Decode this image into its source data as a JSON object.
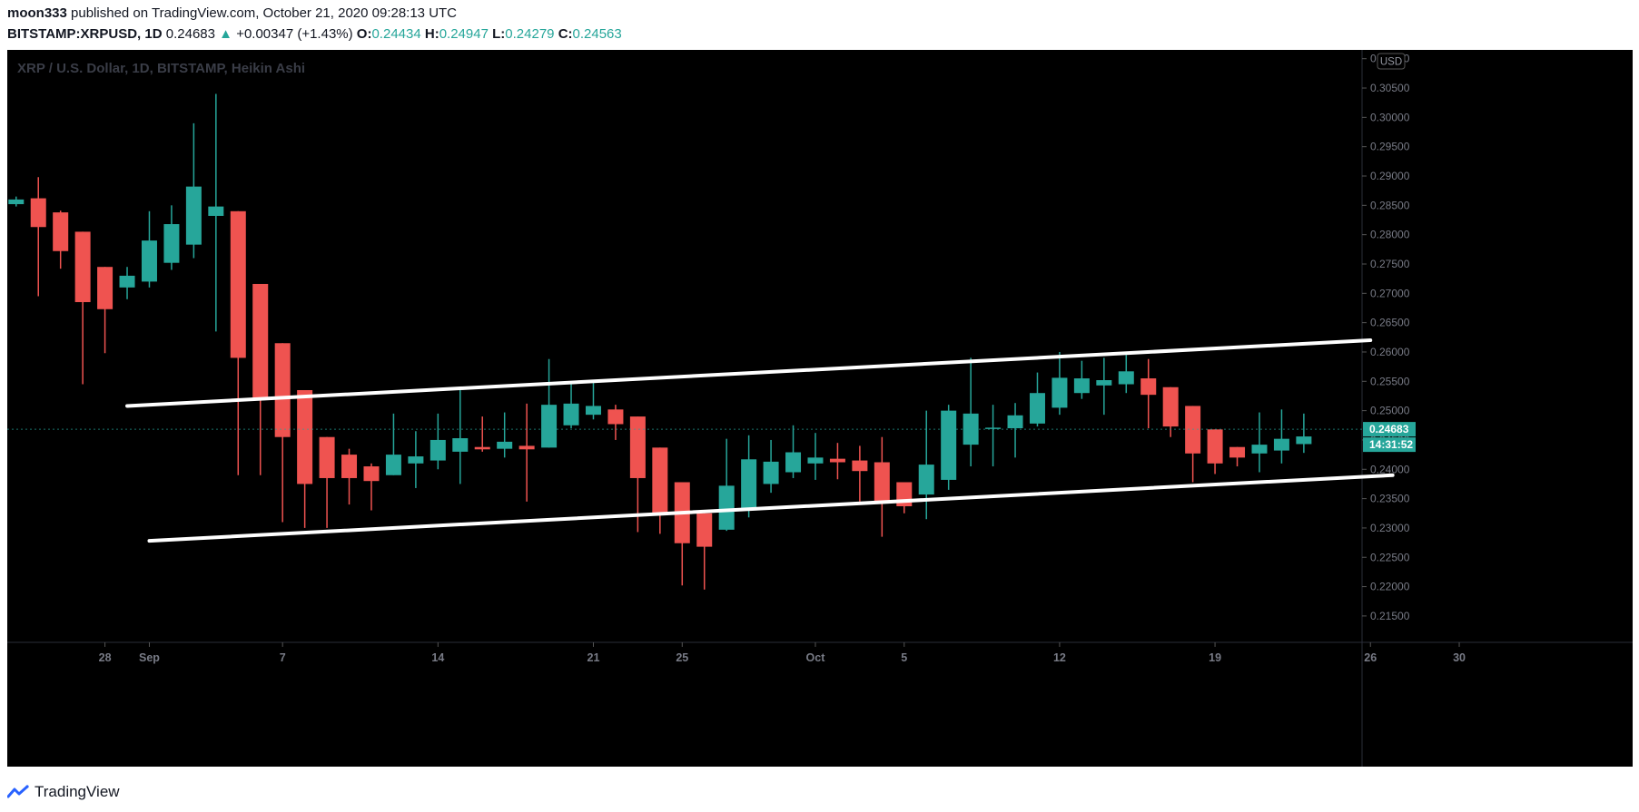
{
  "header": {
    "author": "moon333",
    "published_text": "published on TradingView.com, October 21, 2020 09:28:13 UTC",
    "symbol": "BITSTAMP:XRPUSD, 1D",
    "last": "0.24683",
    "change_arrow": "▲",
    "change": "+0.00347 (+1.43%)",
    "o_label": "O:",
    "o": "0.24434",
    "h_label": "H:",
    "h": "0.24947",
    "l_label": "L:",
    "l": "0.24279",
    "c_label": "C:",
    "c": "0.24563"
  },
  "footer": {
    "brand": "TradingView"
  },
  "colors": {
    "up": "#26a69a",
    "down": "#ef5350",
    "background": "#000000",
    "trendline": "#ffffff",
    "axis_text": "#787b86"
  },
  "chart_data": {
    "type": "candlestick",
    "title": "XRP / U.S. Dollar, 1D, BITSTAMP, Heikin Ashi",
    "currency": "USD",
    "ylim": [
      0.2105,
      0.3115
    ],
    "y_ticks": [
      "0.31000",
      "0.30500",
      "0.30000",
      "0.29500",
      "0.29000",
      "0.28500",
      "0.28000",
      "0.27500",
      "0.27000",
      "0.26500",
      "0.26000",
      "0.25500",
      "0.25000",
      "0.24500",
      "0.24000",
      "0.23500",
      "0.23000",
      "0.22500",
      "0.22000",
      "0.21500"
    ],
    "x_ticks": [
      {
        "label": "28",
        "day": 28
      },
      {
        "label": "Sep",
        "day": 30
      },
      {
        "label": "7",
        "day": 36
      },
      {
        "label": "14",
        "day": 43
      },
      {
        "label": "21",
        "day": 50
      },
      {
        "label": "25",
        "day": 54
      },
      {
        "label": "Oct",
        "day": 60
      },
      {
        "label": "5",
        "day": 64
      },
      {
        "label": "12",
        "day": 71
      },
      {
        "label": "19",
        "day": 78
      },
      {
        "label": "26",
        "day": 85
      },
      {
        "label": "30",
        "day": 89
      }
    ],
    "price_label": "0.24683",
    "countdown_label": "14:31:52",
    "candles": [
      {
        "day": 24,
        "o": 0.2852,
        "h": 0.2865,
        "l": 0.2848,
        "c": 0.286
      },
      {
        "day": 25,
        "o": 0.2862,
        "h": 0.2898,
        "l": 0.2695,
        "c": 0.2813
      },
      {
        "day": 26,
        "o": 0.2838,
        "h": 0.2841,
        "l": 0.2742,
        "c": 0.2772
      },
      {
        "day": 27,
        "o": 0.2805,
        "h": 0.2805,
        "l": 0.2545,
        "c": 0.2685
      },
      {
        "day": 28,
        "o": 0.2745,
        "h": 0.2745,
        "l": 0.2598,
        "c": 0.2673
      },
      {
        "day": 29,
        "o": 0.271,
        "h": 0.2745,
        "l": 0.269,
        "c": 0.273
      },
      {
        "day": 30,
        "o": 0.272,
        "h": 0.284,
        "l": 0.271,
        "c": 0.279
      },
      {
        "day": 31,
        "o": 0.2752,
        "h": 0.285,
        "l": 0.274,
        "c": 0.2818
      },
      {
        "day": 32,
        "o": 0.2783,
        "h": 0.299,
        "l": 0.276,
        "c": 0.2882
      },
      {
        "day": 33,
        "o": 0.2832,
        "h": 0.304,
        "l": 0.2635,
        "c": 0.2848
      },
      {
        "day": 34,
        "o": 0.284,
        "h": 0.284,
        "l": 0.239,
        "c": 0.259
      },
      {
        "day": 35,
        "o": 0.2716,
        "h": 0.2716,
        "l": 0.239,
        "c": 0.252
      },
      {
        "day": 36,
        "o": 0.2615,
        "h": 0.2615,
        "l": 0.231,
        "c": 0.2455
      },
      {
        "day": 37,
        "o": 0.2535,
        "h": 0.2535,
        "l": 0.23,
        "c": 0.2375
      },
      {
        "day": 38,
        "o": 0.2455,
        "h": 0.2455,
        "l": 0.23,
        "c": 0.2385
      },
      {
        "day": 39,
        "o": 0.2425,
        "h": 0.2435,
        "l": 0.234,
        "c": 0.2385
      },
      {
        "day": 40,
        "o": 0.2405,
        "h": 0.241,
        "l": 0.233,
        "c": 0.238
      },
      {
        "day": 41,
        "o": 0.239,
        "h": 0.2495,
        "l": 0.239,
        "c": 0.2425
      },
      {
        "day": 42,
        "o": 0.241,
        "h": 0.2465,
        "l": 0.2368,
        "c": 0.2422
      },
      {
        "day": 43,
        "o": 0.2415,
        "h": 0.2495,
        "l": 0.24,
        "c": 0.245
      },
      {
        "day": 44,
        "o": 0.243,
        "h": 0.2538,
        "l": 0.2375,
        "c": 0.2453
      },
      {
        "day": 45,
        "o": 0.2438,
        "h": 0.249,
        "l": 0.243,
        "c": 0.2434
      },
      {
        "day": 46,
        "o": 0.2435,
        "h": 0.2497,
        "l": 0.242,
        "c": 0.2447
      },
      {
        "day": 47,
        "o": 0.244,
        "h": 0.2512,
        "l": 0.2345,
        "c": 0.2434
      },
      {
        "day": 48,
        "o": 0.2437,
        "h": 0.2588,
        "l": 0.2437,
        "c": 0.251
      },
      {
        "day": 49,
        "o": 0.2475,
        "h": 0.255,
        "l": 0.247,
        "c": 0.2512
      },
      {
        "day": 50,
        "o": 0.2493,
        "h": 0.2548,
        "l": 0.2485,
        "c": 0.2508
      },
      {
        "day": 51,
        "o": 0.2502,
        "h": 0.251,
        "l": 0.245,
        "c": 0.2477
      },
      {
        "day": 52,
        "o": 0.249,
        "h": 0.249,
        "l": 0.2293,
        "c": 0.2385
      },
      {
        "day": 53,
        "o": 0.2437,
        "h": 0.2437,
        "l": 0.229,
        "c": 0.2322
      },
      {
        "day": 54,
        "o": 0.2378,
        "h": 0.2378,
        "l": 0.2202,
        "c": 0.2274
      },
      {
        "day": 55,
        "o": 0.2325,
        "h": 0.2325,
        "l": 0.2195,
        "c": 0.2268
      },
      {
        "day": 56,
        "o": 0.2297,
        "h": 0.2452,
        "l": 0.2295,
        "c": 0.2372
      },
      {
        "day": 57,
        "o": 0.2333,
        "h": 0.2458,
        "l": 0.2318,
        "c": 0.2417
      },
      {
        "day": 58,
        "o": 0.2375,
        "h": 0.245,
        "l": 0.236,
        "c": 0.2413
      },
      {
        "day": 59,
        "o": 0.2395,
        "h": 0.2475,
        "l": 0.2385,
        "c": 0.2429
      },
      {
        "day": 60,
        "o": 0.241,
        "h": 0.2462,
        "l": 0.2382,
        "c": 0.242
      },
      {
        "day": 61,
        "o": 0.2418,
        "h": 0.2445,
        "l": 0.2383,
        "c": 0.2412
      },
      {
        "day": 62,
        "o": 0.2415,
        "h": 0.244,
        "l": 0.2345,
        "c": 0.2397
      },
      {
        "day": 63,
        "o": 0.2412,
        "h": 0.2455,
        "l": 0.2285,
        "c": 0.2344
      },
      {
        "day": 64,
        "o": 0.2378,
        "h": 0.2378,
        "l": 0.2325,
        "c": 0.2337
      },
      {
        "day": 65,
        "o": 0.2357,
        "h": 0.25,
        "l": 0.2315,
        "c": 0.2408
      },
      {
        "day": 66,
        "o": 0.2382,
        "h": 0.251,
        "l": 0.2365,
        "c": 0.25
      },
      {
        "day": 67,
        "o": 0.2442,
        "h": 0.259,
        "l": 0.2405,
        "c": 0.2495
      },
      {
        "day": 68,
        "o": 0.247,
        "h": 0.251,
        "l": 0.2405,
        "c": 0.2471
      },
      {
        "day": 69,
        "o": 0.247,
        "h": 0.2513,
        "l": 0.242,
        "c": 0.2492
      },
      {
        "day": 70,
        "o": 0.2478,
        "h": 0.2565,
        "l": 0.2473,
        "c": 0.253
      },
      {
        "day": 71,
        "o": 0.2505,
        "h": 0.26,
        "l": 0.2493,
        "c": 0.2556
      },
      {
        "day": 72,
        "o": 0.253,
        "h": 0.2585,
        "l": 0.252,
        "c": 0.2555
      },
      {
        "day": 73,
        "o": 0.2543,
        "h": 0.259,
        "l": 0.2493,
        "c": 0.2552
      },
      {
        "day": 74,
        "o": 0.2545,
        "h": 0.2595,
        "l": 0.253,
        "c": 0.2567
      },
      {
        "day": 75,
        "o": 0.2555,
        "h": 0.2588,
        "l": 0.247,
        "c": 0.2527
      },
      {
        "day": 76,
        "o": 0.254,
        "h": 0.254,
        "l": 0.2455,
        "c": 0.2473
      },
      {
        "day": 77,
        "o": 0.2508,
        "h": 0.2508,
        "l": 0.2378,
        "c": 0.2427
      },
      {
        "day": 78,
        "o": 0.2468,
        "h": 0.2468,
        "l": 0.2392,
        "c": 0.241
      },
      {
        "day": 79,
        "o": 0.2438,
        "h": 0.2438,
        "l": 0.2405,
        "c": 0.242
      },
      {
        "day": 80,
        "o": 0.2427,
        "h": 0.2497,
        "l": 0.2395,
        "c": 0.2442
      },
      {
        "day": 81,
        "o": 0.2432,
        "h": 0.2502,
        "l": 0.241,
        "c": 0.2452
      },
      {
        "day": 82,
        "o": 0.2443,
        "h": 0.2495,
        "l": 0.2428,
        "c": 0.2456
      }
    ],
    "trendlines": [
      {
        "x1": 29.0,
        "y1": 0.2508,
        "x2": 85.0,
        "y2": 0.262
      },
      {
        "x1": 30.0,
        "y1": 0.2278,
        "x2": 86.0,
        "y2": 0.239
      }
    ]
  }
}
